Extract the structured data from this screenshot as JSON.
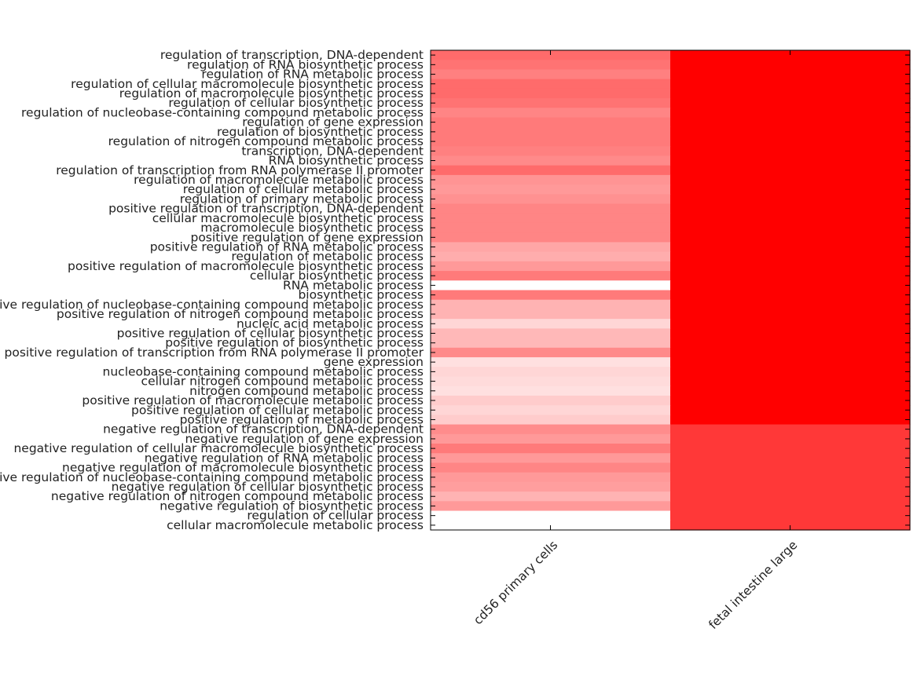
{
  "chart_data": {
    "type": "heatmap",
    "rows": [
      "regulation of transcription, DNA-dependent",
      "regulation of RNA biosynthetic process",
      "regulation of RNA metabolic process",
      "regulation of cellular macromolecule biosynthetic process",
      "regulation of macromolecule biosynthetic process",
      "regulation of cellular biosynthetic process",
      "regulation of nucleobase-containing compound metabolic process",
      "regulation of gene expression",
      "regulation of biosynthetic process",
      "regulation of nitrogen compound metabolic process",
      "transcription, DNA-dependent",
      "RNA biosynthetic process",
      "regulation of transcription from RNA polymerase II promoter",
      "regulation of macromolecule metabolic process",
      "regulation of cellular metabolic process",
      "regulation of primary metabolic process",
      "positive regulation of transcription, DNA-dependent",
      "cellular macromolecule biosynthetic process",
      "macromolecule biosynthetic process",
      "positive regulation of gene expression",
      "positive regulation of RNA metabolic process",
      "regulation of metabolic process",
      "positive regulation of macromolecule biosynthetic process",
      "cellular biosynthetic process",
      "RNA metabolic process",
      "biosynthetic process",
      "positive regulation of nucleobase-containing compound metabolic process",
      "positive regulation of nitrogen compound metabolic process",
      "nucleic acid metabolic process",
      "positive regulation of cellular biosynthetic process",
      "positive regulation of biosynthetic process",
      "positive regulation of transcription from RNA polymerase II promoter",
      "gene expression",
      "nucleobase-containing compound metabolic process",
      "cellular nitrogen compound metabolic process",
      "nitrogen compound metabolic process",
      "positive regulation of macromolecule metabolic process",
      "positive regulation of cellular metabolic process",
      "positive regulation of metabolic process",
      "negative regulation of transcription, DNA-dependent",
      "negative regulation of gene expression",
      "negative regulation of cellular macromolecule biosynthetic process",
      "negative regulation of RNA metabolic process",
      "negative regulation of macromolecule biosynthetic process",
      "negative regulation of nucleobase-containing compound metabolic process",
      "negative regulation of cellular biosynthetic process",
      "negative regulation of nitrogen compound metabolic process",
      "negative regulation of biosynthetic process",
      "regulation of cellular process",
      "cellular macromolecule metabolic process"
    ],
    "columns": [
      "cd56 primary cells",
      "fetal intestine large"
    ],
    "values": [
      [
        0.58,
        1.0
      ],
      [
        0.55,
        1.0
      ],
      [
        0.5,
        1.0
      ],
      [
        0.58,
        1.0
      ],
      [
        0.58,
        1.0
      ],
      [
        0.55,
        1.0
      ],
      [
        0.48,
        1.0
      ],
      [
        0.52,
        1.0
      ],
      [
        0.52,
        1.0
      ],
      [
        0.52,
        1.0
      ],
      [
        0.5,
        1.0
      ],
      [
        0.46,
        1.0
      ],
      [
        0.58,
        1.0
      ],
      [
        0.42,
        1.0
      ],
      [
        0.4,
        1.0
      ],
      [
        0.43,
        1.0
      ],
      [
        0.48,
        1.0
      ],
      [
        0.48,
        1.0
      ],
      [
        0.48,
        1.0
      ],
      [
        0.48,
        1.0
      ],
      [
        0.35,
        1.0
      ],
      [
        0.32,
        1.0
      ],
      [
        0.4,
        1.0
      ],
      [
        0.52,
        1.0
      ],
      [
        0.0,
        1.0
      ],
      [
        0.52,
        1.0
      ],
      [
        0.3,
        1.0
      ],
      [
        0.3,
        1.0
      ],
      [
        0.16,
        1.0
      ],
      [
        0.28,
        1.0
      ],
      [
        0.28,
        1.0
      ],
      [
        0.46,
        1.0
      ],
      [
        0.12,
        1.0
      ],
      [
        0.16,
        1.0
      ],
      [
        0.14,
        1.0
      ],
      [
        0.12,
        1.0
      ],
      [
        0.2,
        1.0
      ],
      [
        0.16,
        1.0
      ],
      [
        0.2,
        1.0
      ],
      [
        0.45,
        0.78
      ],
      [
        0.4,
        0.78
      ],
      [
        0.52,
        0.78
      ],
      [
        0.4,
        0.78
      ],
      [
        0.48,
        0.78
      ],
      [
        0.4,
        0.78
      ],
      [
        0.38,
        0.78
      ],
      [
        0.3,
        0.78
      ],
      [
        0.4,
        0.78
      ],
      [
        0.0,
        0.78
      ],
      [
        0.0,
        0.78
      ]
    ],
    "colormap": {
      "low": "#ffffff",
      "high": "#ff0000"
    },
    "title": "",
    "xlabel": "",
    "ylabel": "",
    "legend": "none",
    "grid": false
  }
}
